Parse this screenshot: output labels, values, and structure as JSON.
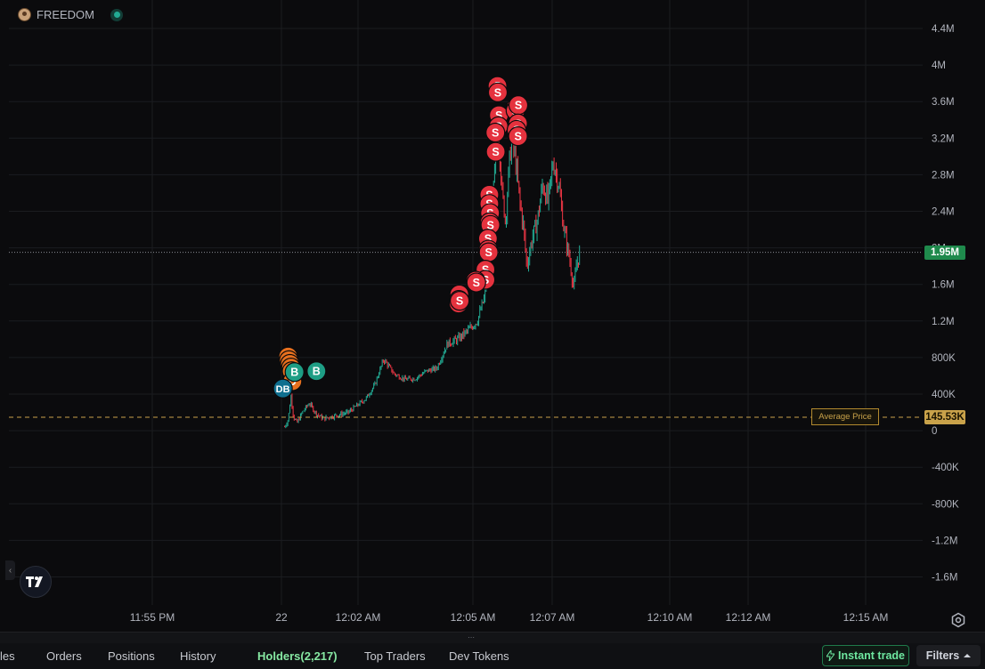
{
  "legend": {
    "symbol": "FREEDOM"
  },
  "y_axis_labels": [
    "4.4M",
    "4M",
    "3.6M",
    "3.2M",
    "2.8M",
    "2.4M",
    "2M",
    "1.6M",
    "1.2M",
    "800K",
    "400K",
    "0",
    "-400K",
    "-800K",
    "-1.2M",
    "-1.6M"
  ],
  "x_axis_labels": [
    "11:55 PM",
    "22",
    "12:02 AM",
    "12:05 AM",
    "12:07 AM",
    "12:10 AM",
    "12:12 AM",
    "12:15 AM"
  ],
  "last_price": {
    "label": "1.95M",
    "value": 1950000,
    "color": "#1f8a4c"
  },
  "average_price": {
    "label": "145.53K",
    "value": 145530,
    "text": "Average Price",
    "color": "#c9a24a"
  },
  "colors": {
    "up": "#22ab94",
    "down": "#f23645",
    "sell_marker": "#e5323e",
    "buy_marker": "#1e9e85",
    "dev_buy_marker": "#0f6f8f",
    "dev_marker": "#e8701e"
  },
  "markers": {
    "sell": [
      {
        "t": 0.72,
        "v": 3770000
      },
      {
        "t": 0.73,
        "v": 3700000
      },
      {
        "t": 0.76,
        "v": 3450000
      },
      {
        "t": 0.75,
        "v": 3330000
      },
      {
        "t": 0.66,
        "v": 3260000
      },
      {
        "t": 0.67,
        "v": 3050000
      },
      {
        "t": 1.25,
        "v": 3540000
      },
      {
        "t": 1.23,
        "v": 3500000
      },
      {
        "t": 1.31,
        "v": 3560000
      },
      {
        "t": 1.3,
        "v": 3360000
      },
      {
        "t": 1.26,
        "v": 3290000
      },
      {
        "t": 1.3,
        "v": 3220000
      },
      {
        "t": 0.49,
        "v": 2580000
      },
      {
        "t": 0.49,
        "v": 2480000
      },
      {
        "t": 0.51,
        "v": 2380000
      },
      {
        "t": 0.5,
        "v": 2280000
      },
      {
        "t": 0.52,
        "v": 2250000
      },
      {
        "t": 0.45,
        "v": 2100000
      },
      {
        "t": 0.46,
        "v": 1980000
      },
      {
        "t": 0.47,
        "v": 1950000
      },
      {
        "t": 0.38,
        "v": 1760000
      },
      {
        "t": 0.38,
        "v": 1650000
      },
      {
        "t": 0.1,
        "v": 1640000
      },
      {
        "t": 0.12,
        "v": 1620000
      },
      {
        "t": -0.36,
        "v": 1490000
      },
      {
        "t": -0.37,
        "v": 1430000
      },
      {
        "t": -0.38,
        "v": 1390000
      },
      {
        "t": -0.35,
        "v": 1420000
      }
    ],
    "buy": [
      {
        "t": -5.02,
        "v": 640000,
        "label": "B"
      },
      {
        "t": -4.4,
        "v": 650000,
        "label": "B"
      }
    ],
    "dev_buy": [
      {
        "t": -5.35,
        "v": 460000,
        "label": "DB"
      }
    ],
    "dev": [
      {
        "t": -5.2,
        "v": 810000,
        "label": "D"
      },
      {
        "t": -5.18,
        "v": 770000,
        "label": "D"
      },
      {
        "t": -5.15,
        "v": 730000,
        "label": "D"
      },
      {
        "t": -5.12,
        "v": 690000,
        "label": "D"
      },
      {
        "t": -5.1,
        "v": 650000,
        "label": "D"
      },
      {
        "t": -5.08,
        "v": 540000,
        "label": "D"
      }
    ]
  },
  "series_anchors": [
    {
      "t": -5.3,
      "v": 40000
    },
    {
      "t": -5.2,
      "v": 120000
    },
    {
      "t": -5.12,
      "v": 380000
    },
    {
      "t": -5.05,
      "v": 150000
    },
    {
      "t": -4.95,
      "v": 80000
    },
    {
      "t": -4.8,
      "v": 200000
    },
    {
      "t": -4.6,
      "v": 300000
    },
    {
      "t": -4.4,
      "v": 180000
    },
    {
      "t": -4.2,
      "v": 130000
    },
    {
      "t": -3.9,
      "v": 160000
    },
    {
      "t": -3.5,
      "v": 200000
    },
    {
      "t": -3.0,
      "v": 350000
    },
    {
      "t": -2.75,
      "v": 500000
    },
    {
      "t": -2.5,
      "v": 780000
    },
    {
      "t": -2.2,
      "v": 620000
    },
    {
      "t": -1.9,
      "v": 560000
    },
    {
      "t": -1.6,
      "v": 570000
    },
    {
      "t": -1.3,
      "v": 650000
    },
    {
      "t": -1.0,
      "v": 680000
    },
    {
      "t": -0.7,
      "v": 950000
    },
    {
      "t": -0.4,
      "v": 1000000
    },
    {
      "t": -0.1,
      "v": 1100000
    },
    {
      "t": 0.15,
      "v": 1200000
    },
    {
      "t": 0.35,
      "v": 1450000
    },
    {
      "t": 0.45,
      "v": 1800000
    },
    {
      "t": 0.55,
      "v": 2250000
    },
    {
      "t": 0.62,
      "v": 2700000
    },
    {
      "t": 0.7,
      "v": 3250000
    },
    {
      "t": 0.78,
      "v": 3100000
    },
    {
      "t": 0.85,
      "v": 2600000
    },
    {
      "t": 0.95,
      "v": 2300000
    },
    {
      "t": 1.05,
      "v": 2900000
    },
    {
      "t": 1.12,
      "v": 3200000
    },
    {
      "t": 1.22,
      "v": 3000000
    },
    {
      "t": 1.35,
      "v": 2500000
    },
    {
      "t": 1.45,
      "v": 2250000
    },
    {
      "t": 1.55,
      "v": 1800000
    },
    {
      "t": 1.7,
      "v": 2100000
    },
    {
      "t": 1.85,
      "v": 2300000
    },
    {
      "t": 2.0,
      "v": 2700000
    },
    {
      "t": 2.15,
      "v": 2500000
    },
    {
      "t": 2.3,
      "v": 2950000
    },
    {
      "t": 2.45,
      "v": 2700000
    },
    {
      "t": 2.6,
      "v": 2200000
    },
    {
      "t": 2.75,
      "v": 1900000
    },
    {
      "t": 2.88,
      "v": 1550000
    },
    {
      "t": 2.95,
      "v": 1800000
    },
    {
      "t": 3.05,
      "v": 1950000
    }
  ],
  "tabs": [
    {
      "label": "les"
    },
    {
      "label": "Orders"
    },
    {
      "label": "Positions"
    },
    {
      "label": "History"
    },
    {
      "label": "Holders(2,217)",
      "active": true
    },
    {
      "label": "Top Traders"
    },
    {
      "label": "Dev Tokens"
    }
  ],
  "instant_trade_label": "Instant trade",
  "filters_label": "Filters"
}
